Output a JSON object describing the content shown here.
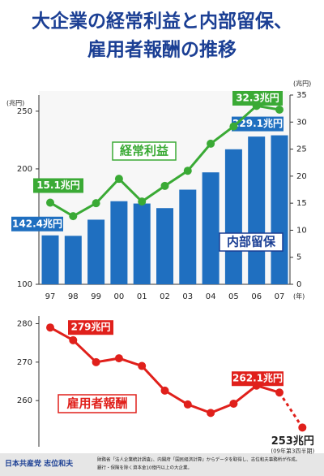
{
  "chart_data": [
    {
      "type": "combo",
      "title": [
        "大企業の経常利益と内部留保、",
        "雇用者報酬の推移"
      ],
      "categories": [
        "97",
        "98",
        "99",
        "00",
        "01",
        "02",
        "03",
        "04",
        "05",
        "06",
        "07"
      ],
      "x_unit_label": "(年)",
      "y_unit_label": "(兆円)",
      "y2_unit_label": "(兆円)",
      "series": [
        {
          "name": "内部留保",
          "type": "bar",
          "color": "#1f6fc0",
          "values": [
            142.4,
            142,
            156,
            172,
            170,
            166,
            182,
            197,
            217,
            228,
            229.1
          ],
          "value_labels": [
            "142.4兆円",
            null,
            null,
            null,
            null,
            null,
            null,
            null,
            null,
            null,
            "229.1兆円"
          ]
        },
        {
          "name": "経常利益",
          "type": "line",
          "axis": "y2",
          "color": "#3aaa35",
          "values": [
            15.1,
            12.6,
            15,
            19.5,
            15.3,
            18.2,
            21,
            26,
            29.2,
            33,
            32.3
          ],
          "value_labels": [
            "15.1兆円",
            null,
            null,
            null,
            null,
            null,
            null,
            null,
            null,
            null,
            "32.3兆円"
          ]
        }
      ],
      "ylim": [
        100,
        264
      ],
      "yticks": [
        100,
        150,
        200,
        250
      ],
      "y2lim": [
        0,
        35
      ],
      "y2ticks": [
        0,
        5,
        10,
        15,
        20,
        25,
        30,
        35
      ]
    },
    {
      "type": "line",
      "categories": [
        "97",
        "98",
        "99",
        "00",
        "01",
        "02",
        "03",
        "04",
        "05",
        "06",
        "07",
        null
      ],
      "series": [
        {
          "name": "雇用者報酬",
          "color": "#e0201b",
          "values": [
            279,
            275.7,
            270,
            271,
            269,
            262.6,
            259,
            256.8,
            259.2,
            263.9,
            262.1,
            253
          ],
          "value_labels": [
            "279兆円",
            null,
            null,
            null,
            null,
            null,
            null,
            null,
            null,
            null,
            "262.1兆円",
            "253兆円"
          ]
        }
      ],
      "annotation": "(09年第3四半期)",
      "dash_last_segment": true,
      "ylim": [
        248,
        282
      ],
      "yticks": [
        260,
        270,
        280
      ]
    }
  ],
  "footer": {
    "author": "日本共産党 志位和夫",
    "source": [
      "財務省「法人企業統計調査」、内閣府「国民経済計算」からデータを取得し、志位和夫事務所が作成。",
      "銀行・保険を除く資本金10億円以上の大企業。"
    ]
  }
}
